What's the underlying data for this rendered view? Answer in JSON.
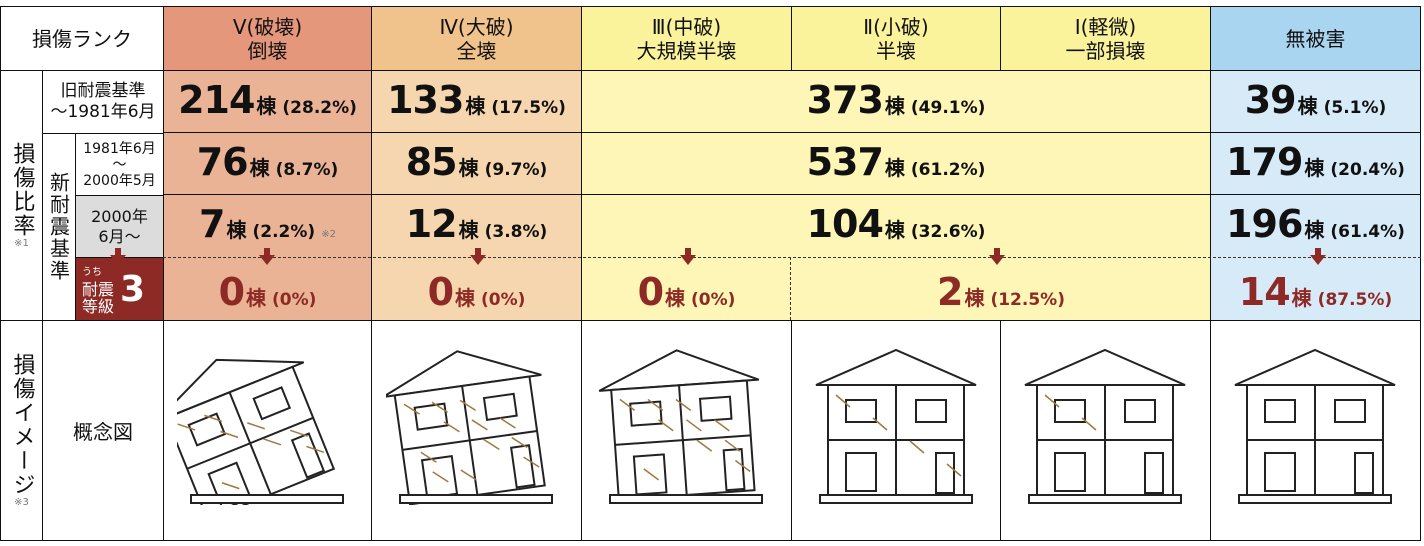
{
  "header": {
    "rank_label": "損傷ランク",
    "cols": [
      {
        "l1": "Ⅴ(破壊)",
        "l2": "倒壊"
      },
      {
        "l1": "Ⅳ(大破)",
        "l2": "全壊"
      },
      {
        "l1": "Ⅲ(中破)",
        "l2": "大規模半壊"
      },
      {
        "l1": "Ⅱ(小破)",
        "l2": "半壊"
      },
      {
        "l1": "Ⅰ(軽微)",
        "l2": "一部損壊"
      },
      {
        "l1": "無被害",
        "l2": ""
      }
    ]
  },
  "side": {
    "ratio_label": "損傷比率",
    "ratio_note": "※1",
    "new_std": "新耐震基準",
    "old_l1": "旧耐震基準",
    "old_l2": "〜1981年6月",
    "mid_l1": "1981年6月",
    "mid_l2": "〜",
    "mid_l3": "2000年5月",
    "new_l1": "2000年",
    "new_l2": "6月〜",
    "grade_small": "うち",
    "grade_l1": "耐震",
    "grade_l2": "等級",
    "grade_num": "3",
    "image_label": "損傷イメージ",
    "image_note": "※3",
    "concept": "概念図"
  },
  "unit": "棟",
  "rows": [
    {
      "v": [
        "214",
        "(28.2%)"
      ],
      "iv": [
        "133",
        "(17.5%)"
      ],
      "mid": [
        "373",
        "(49.1%)"
      ],
      "none": [
        "39",
        "(5.1%)"
      ]
    },
    {
      "v": [
        "76",
        "(8.7%)"
      ],
      "iv": [
        "85",
        "(9.7%)"
      ],
      "mid": [
        "537",
        "(61.2%)"
      ],
      "none": [
        "179",
        "(20.4%)"
      ]
    },
    {
      "v": [
        "7",
        "(2.2%)"
      ],
      "v_note": "※2",
      "iv": [
        "12",
        "(3.8%)"
      ],
      "mid": [
        "104",
        "(32.6%)"
      ],
      "none": [
        "196",
        "(61.4%)"
      ]
    },
    {
      "v": [
        "0",
        "(0%)"
      ],
      "iv": [
        "0",
        "(0%)"
      ],
      "iii": [
        "0",
        "(0%)"
      ],
      "ii_i": [
        "2",
        "(12.5%)"
      ],
      "none": [
        "14",
        "(87.5%)"
      ]
    }
  ],
  "colors": {
    "v_head": "#e4977a",
    "v_body": "#eab396",
    "iv_head": "#f0c28c",
    "iv_body": "#f6d6ae",
    "y_head": "#fbf39c",
    "y_body": "#fdf6b6",
    "b_head": "#a9d5f0",
    "b_body": "#d7eaf8",
    "dark_red": "#8e2a25",
    "grey": "#dcdcdc"
  }
}
